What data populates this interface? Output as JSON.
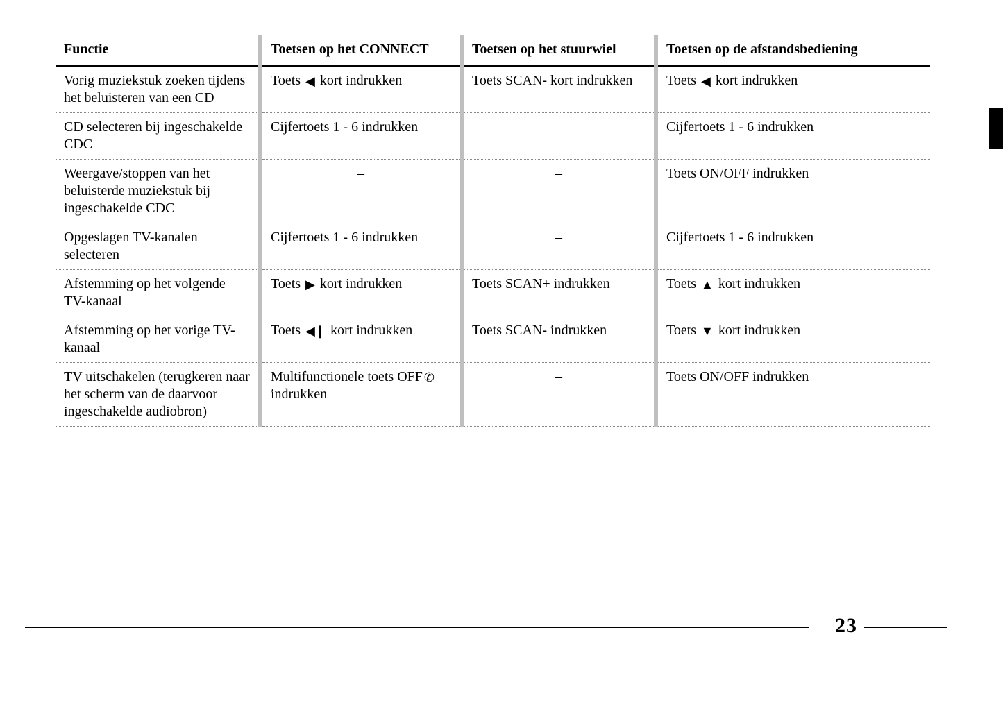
{
  "colors": {
    "text": "#000000",
    "background": "#ffffff",
    "separator": "#bfbfbf",
    "dotted_row_border": "#888888"
  },
  "page_number": "23",
  "table": {
    "headers": [
      "Functie",
      "Toetsen op het CONNECT",
      "Toetsen op het stuurwiel",
      "Toetsen op de afstandsbediening"
    ],
    "rows": [
      {
        "functie": "Vorig muziekstuk zoeken tijdens het beluisteren van een CD",
        "connect": {
          "pre": "Toets ",
          "icon": "triangle-left",
          "post": " kort indrukken"
        },
        "stuurwiel": {
          "text": "Toets SCAN- kort indrukken"
        },
        "afstand": {
          "pre": "Toets ",
          "icon": "triangle-left",
          "post": " kort indrukken"
        }
      },
      {
        "functie": "CD selecteren bij ingeschakelde CDC",
        "connect": {
          "text": "Cijfertoets 1 - 6 indrukken"
        },
        "stuurwiel": {
          "text": "–",
          "center": true
        },
        "afstand": {
          "text": "Cijfertoets 1 - 6 indrukken"
        }
      },
      {
        "functie": "Weergave/stoppen van het beluisterde muziekstuk bij ingeschakelde CDC",
        "connect": {
          "text": "–",
          "center": true
        },
        "stuurwiel": {
          "text": "–",
          "center": true
        },
        "afstand": {
          "text": "Toets ON/OFF indrukken"
        }
      },
      {
        "functie": "Opgeslagen TV-kanalen selecteren",
        "connect": {
          "text": "Cijfertoets 1 - 6 indrukken"
        },
        "stuurwiel": {
          "text": "–",
          "center": true
        },
        "afstand": {
          "text": "Cijfertoets 1 - 6 indrukken"
        }
      },
      {
        "functie": "Afstemming op het volgende TV-kanaal",
        "connect": {
          "pre": "Toets ",
          "icon": "triangle-right",
          "post": " kort indrukken"
        },
        "stuurwiel": {
          "text": "Toets SCAN+ indrukken"
        },
        "afstand": {
          "pre": "Toets ",
          "icon": "triangle-up",
          "post": " kort indrukken"
        }
      },
      {
        "functie": "Afstemming op het vorige TV-kanaal",
        "connect": {
          "pre": "Toets ",
          "icon": "triangle-left-double",
          "post": " kort indrukken"
        },
        "stuurwiel": {
          "text": "Toets SCAN- indrukken"
        },
        "afstand": {
          "pre": "Toets ",
          "icon": "triangle-down",
          "post": "   kort indrukken"
        }
      },
      {
        "functie": "TV uitschakelen (terugkeren naar het scherm van de daarvoor ingeschakelde audiobron)",
        "connect": {
          "pre": "Multifunctionele toets OFF",
          "icon": "phone-off",
          "post": " indrukken"
        },
        "stuurwiel": {
          "text": "–",
          "center": true
        },
        "afstand": {
          "text": "Toets ON/OFF indrukken"
        }
      }
    ]
  },
  "icons": {
    "triangle-left": "◀",
    "triangle-right": "▶",
    "triangle-up": "▲",
    "triangle-down": "▼",
    "triangle-left-double": "◀❙",
    "phone-off": "✆"
  }
}
